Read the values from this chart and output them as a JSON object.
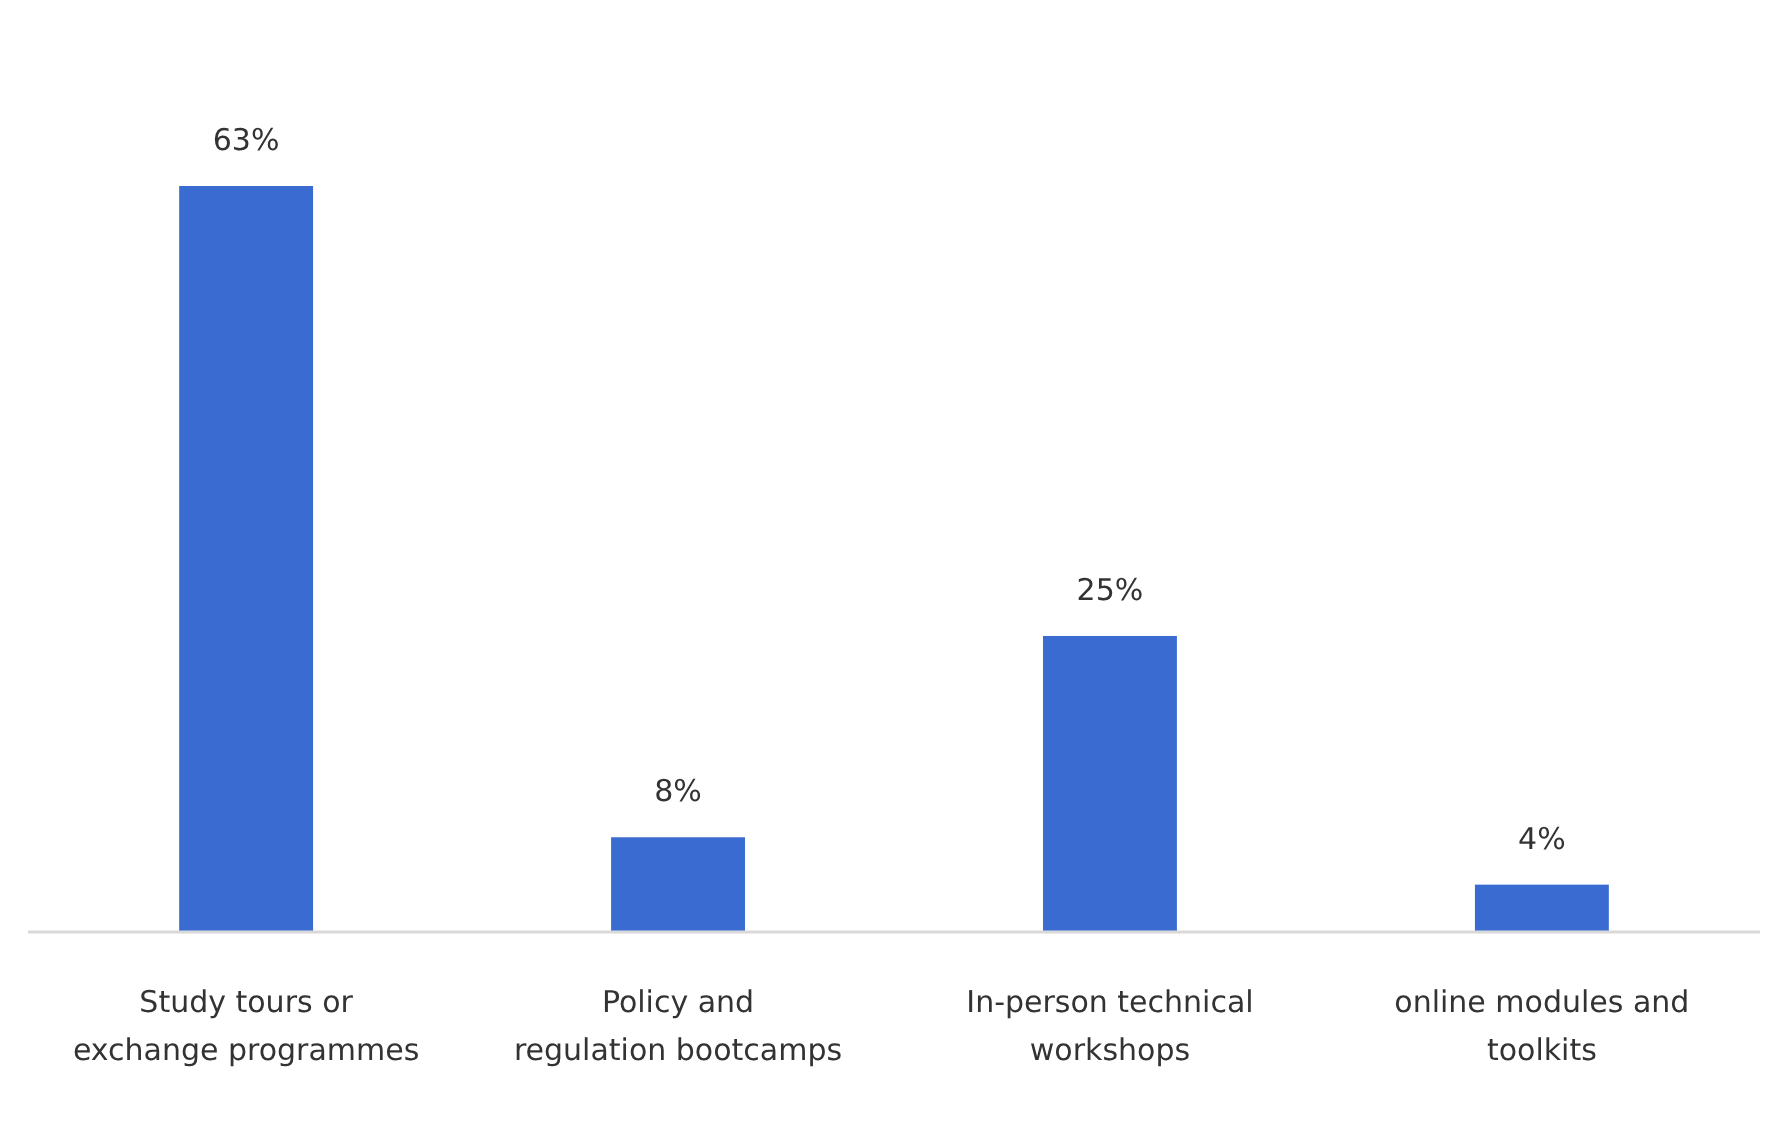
{
  "chart_data": {
    "type": "bar",
    "categories": [
      "Study tours or exchange programmes",
      "Policy and regulation bootcamps",
      "In-person technical workshops",
      "online modules and toolkits"
    ],
    "values": [
      63,
      8,
      25,
      4
    ],
    "value_labels": [
      "63%",
      "8%",
      "25%",
      "4%"
    ],
    "color": "#3a6bd0"
  }
}
